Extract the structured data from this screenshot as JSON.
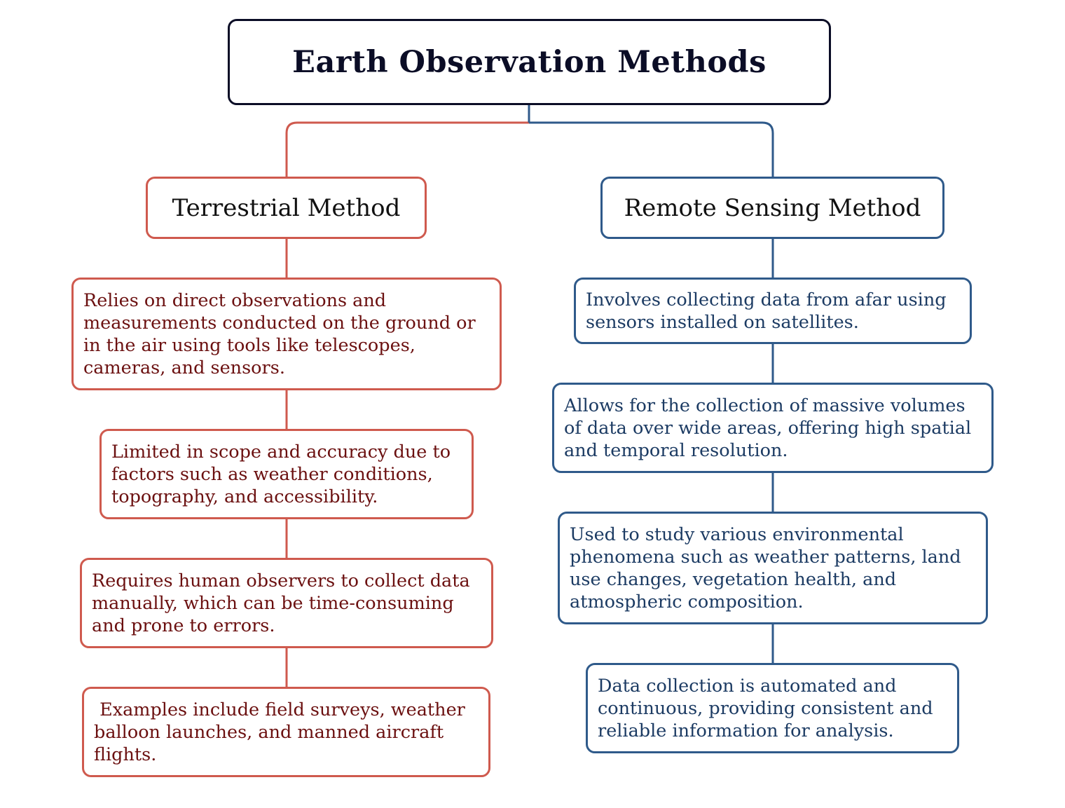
{
  "title": "Earth Observation Methods",
  "colors": {
    "root_border": "#0b0d26",
    "terrestrial_accent": "#cf5a4e",
    "terrestrial_text": "#6b1010",
    "remote_accent": "#2f5a8a",
    "remote_text": "#1c3b63"
  },
  "terrestrial": {
    "label": "Terrestrial Method",
    "items": [
      "Relies on direct observations and measurements conducted on the ground or in the air using tools like telescopes, cameras, and sensors.",
      "Limited in scope and accuracy due to factors such as weather conditions, topography, and accessibility.",
      "Requires human observers to collect data manually, which can be time-consuming and prone to errors.",
      " Examples include field surveys, weather balloon launches, and manned aircraft flights."
    ]
  },
  "remote_sensing": {
    "label": "Remote Sensing Method",
    "items": [
      "Involves collecting data from afar using sensors installed on satellites.",
      "Allows for the collection of massive volumes of data over wide areas, offering high spatial and temporal resolution.",
      "Used to study various environmental phenomena such as weather patterns, land use changes, vegetation health, and atmospheric composition.",
      "Data collection is automated and continuous, providing consistent and reliable information for analysis."
    ]
  }
}
